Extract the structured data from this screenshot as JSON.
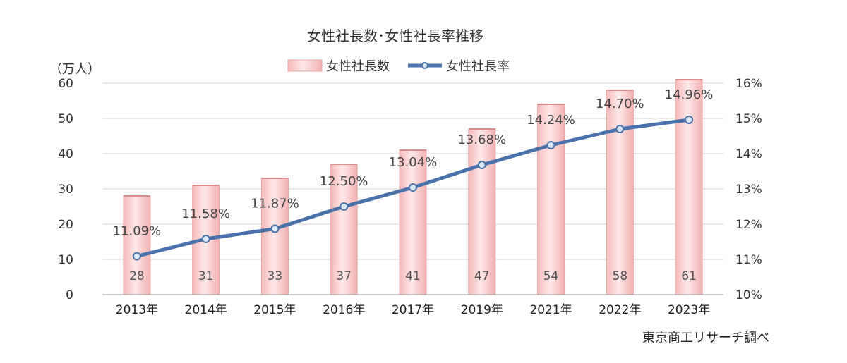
{
  "chart_data": {
    "type": "bar",
    "title": "女性社長数･女性社長率推移",
    "unit_left": "（万人）",
    "source": "東京商工リサーチ調べ",
    "categories": [
      "2013年",
      "2014年",
      "2015年",
      "2016年",
      "2017年",
      "2019年",
      "2021年",
      "2022年",
      "2023年"
    ],
    "series": [
      {
        "name": "女性社長数",
        "type": "bar",
        "axis": "left",
        "values": [
          28,
          31,
          33,
          37,
          41,
          47,
          54,
          58,
          61
        ],
        "labels": [
          "28",
          "31",
          "33",
          "37",
          "41",
          "47",
          "54",
          "58",
          "61"
        ],
        "color": "#f8c8c8"
      },
      {
        "name": "女性社長率",
        "type": "line",
        "axis": "right",
        "values": [
          11.09,
          11.58,
          11.87,
          12.5,
          13.04,
          13.68,
          14.24,
          14.7,
          14.96
        ],
        "labels": [
          "11.09%",
          "11.58%",
          "11.87%",
          "12.50%",
          "13.04%",
          "13.68%",
          "14.24%",
          "14.70%",
          "14.96%"
        ],
        "color": "#4a72aa"
      }
    ],
    "y_left": {
      "min": 0,
      "max": 60,
      "ticks": [
        "0",
        "10",
        "20",
        "30",
        "40",
        "50",
        "60"
      ]
    },
    "y_right": {
      "min": 10,
      "max": 16,
      "ticks": [
        "10%",
        "11%",
        "12%",
        "13%",
        "14%",
        "15%",
        "16%"
      ]
    },
    "grid": true,
    "legend_position": "top"
  }
}
